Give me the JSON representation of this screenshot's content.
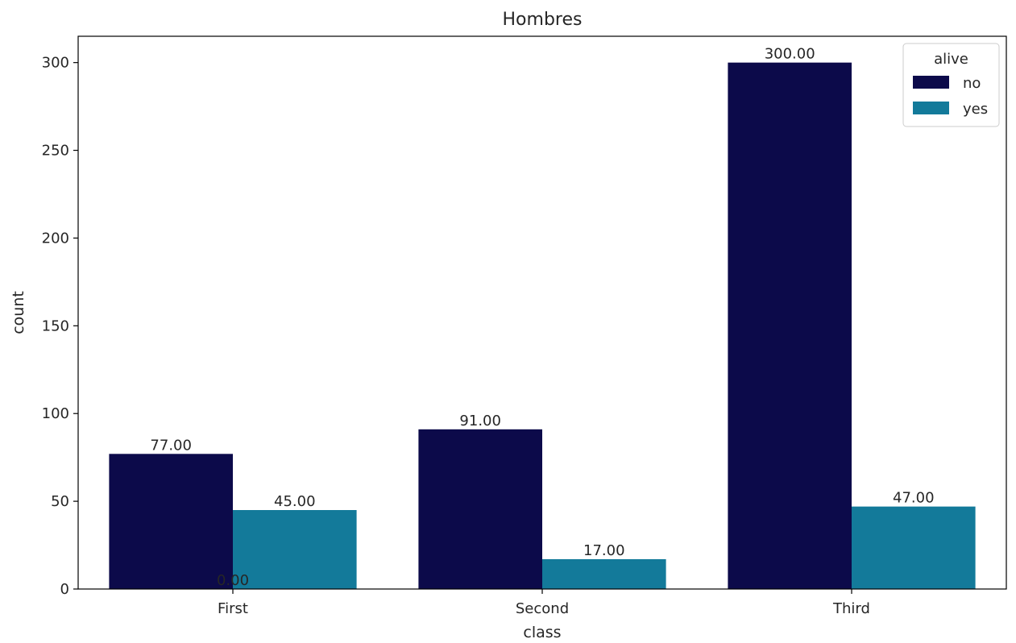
{
  "chart_data": {
    "type": "bar",
    "title": "Hombres",
    "xlabel": "class",
    "ylabel": "count",
    "categories": [
      "First",
      "Second",
      "Third"
    ],
    "ylim": [
      0,
      315
    ],
    "yticks": [
      0,
      50,
      100,
      150,
      200,
      250,
      300
    ],
    "grid": false,
    "series": [
      {
        "name": "no",
        "values": [
          77,
          91,
          300
        ],
        "color": "#0c0a4a"
      },
      {
        "name": "yes",
        "values": [
          45,
          17,
          47
        ],
        "color": "#137a9a"
      }
    ],
    "bar_labels": [
      [
        "77.00",
        "91.00",
        "300.00"
      ],
      [
        "45.00",
        "17.00",
        "47.00"
      ]
    ],
    "extra_annotations": [
      {
        "text": "0.00",
        "category": "First",
        "y": 0
      }
    ],
    "legend": {
      "title": "alive",
      "position": "top-right"
    }
  }
}
